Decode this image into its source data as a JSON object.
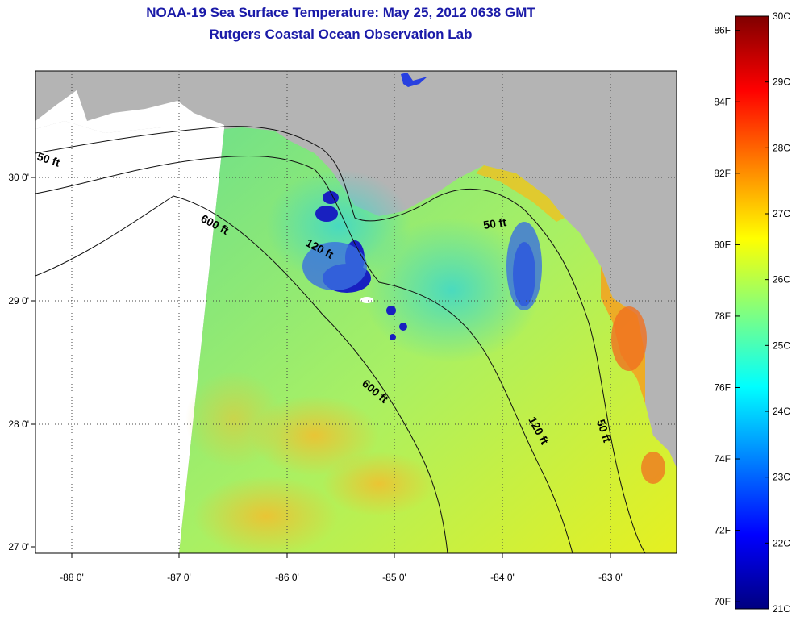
{
  "title_line1": "NOAA-19 Sea Surface Temperature:  May 25, 2012 0638 GMT",
  "title_line2": "Rutgers Coastal Ocean Observation Lab",
  "map": {
    "lat_labels": [
      "30 0'",
      "29 0'",
      "28 0'",
      "27 0'"
    ],
    "lon_labels": [
      "-88 0'",
      "-87 0'",
      "-86 0'",
      "-85 0'",
      "-84 0'",
      "-83 0'"
    ],
    "contour_labels": [
      "50 ft",
      "600 ft",
      "120 ft",
      "50 ft",
      "600 ft",
      "120 ft",
      "50 ft"
    ],
    "land_color": "#b4b4b4",
    "nodata_color": "#ffffff"
  },
  "colorbar": {
    "fahrenheit_labels": [
      "86F",
      "84F",
      "82F",
      "80F",
      "78F",
      "76F",
      "74F",
      "72F",
      "70F"
    ],
    "celsius_labels": [
      "30C",
      "29C",
      "28C",
      "27C",
      "26C",
      "25C",
      "24C",
      "23C",
      "22C",
      "21C"
    ],
    "colors": [
      "#800000",
      "#ff0000",
      "#ff8000",
      "#ffff00",
      "#80ff80",
      "#00ffff",
      "#0080ff",
      "#0000ff",
      "#000080"
    ]
  }
}
